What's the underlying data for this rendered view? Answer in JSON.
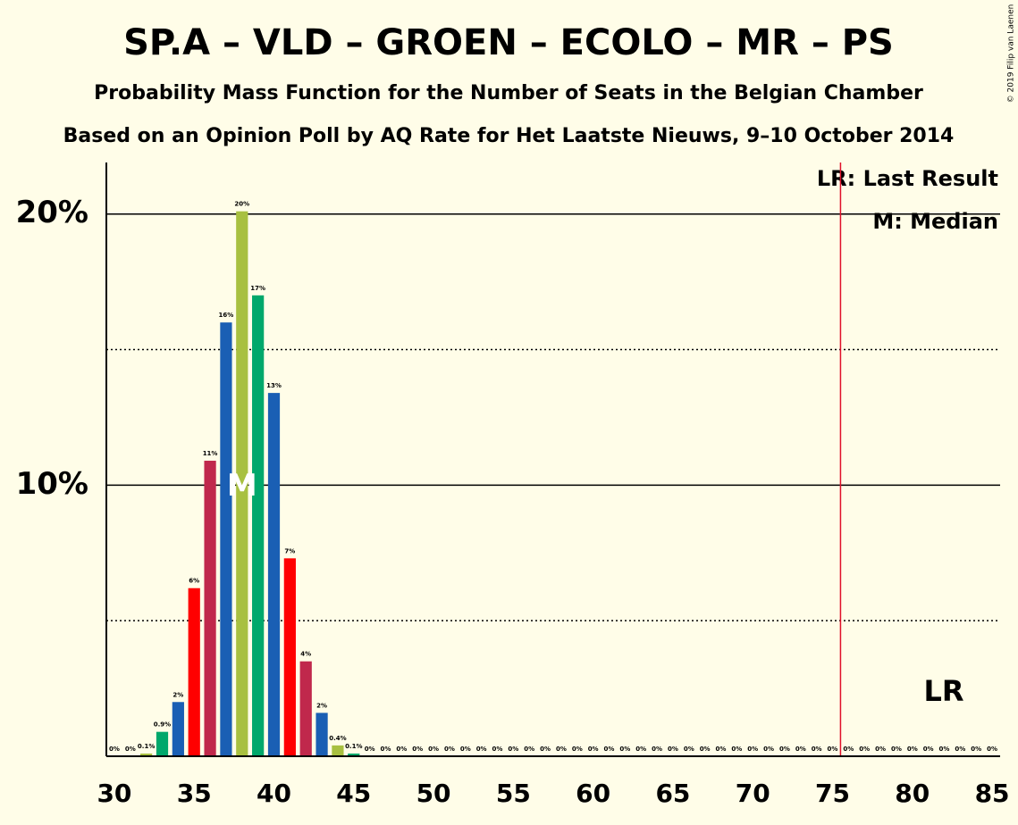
{
  "chart_data": {
    "type": "bar",
    "title": "SP.A – VLD – GROEN – ECOLO – MR – PS",
    "subtitle": "Probability Mass Function for the Number of Seats in the Belgian Chamber",
    "subtitle2": "Based on an Opinion Poll by AQ Rate for Het Laatste Nieuws, 9–10 October 2014",
    "copyright": "© 2019 Filip van Laenen",
    "x": [
      30,
      31,
      32,
      33,
      34,
      35,
      36,
      37,
      38,
      39,
      40,
      41,
      42,
      43,
      44,
      45,
      46,
      47,
      48,
      49,
      50,
      51,
      52,
      53,
      54,
      55,
      56,
      57,
      58,
      59,
      60,
      61,
      62,
      63,
      64,
      65,
      66,
      67,
      68,
      69,
      70,
      71,
      72,
      73,
      74,
      75,
      76,
      77,
      78,
      79,
      80,
      81,
      82,
      83,
      84,
      85
    ],
    "values": [
      0,
      0,
      0.1,
      0.9,
      2.0,
      6.2,
      10.9,
      16.0,
      20.1,
      17.0,
      13.4,
      7.3,
      3.5,
      1.6,
      0.4,
      0.1,
      0,
      0,
      0,
      0,
      0,
      0,
      0,
      0,
      0,
      0,
      0,
      0,
      0,
      0,
      0,
      0,
      0,
      0,
      0,
      0,
      0,
      0,
      0,
      0,
      0,
      0,
      0,
      0,
      0,
      0,
      0,
      0,
      0,
      0,
      0,
      0,
      0,
      0,
      0,
      0
    ],
    "value_labels": [
      "0%",
      "0%",
      "0.1%",
      "0.9%",
      "2%",
      "6%",
      "11%",
      "16%",
      "20%",
      "17%",
      "13%",
      "7%",
      "4%",
      "2%",
      "0.4%",
      "0.1%",
      "0%",
      "0%",
      "0%",
      "0%",
      "0%",
      "0%",
      "0%",
      "0%",
      "0%",
      "0%",
      "0%",
      "0%",
      "0%",
      "0%",
      "0%",
      "0%",
      "0%",
      "0%",
      "0%",
      "0%",
      "0%",
      "0%",
      "0%",
      "0%",
      "0%",
      "0%",
      "0%",
      "0%",
      "0%",
      "0%",
      "0%",
      "0%",
      "0%",
      "0%",
      "0%",
      "0%",
      "0%",
      "0%",
      "0%",
      "0%"
    ],
    "colors": [
      "#c0284c",
      "#1a5fb4",
      "#a8c040",
      "#00a86b",
      "#1a5fb4",
      "#ff0000",
      "#c0284c",
      "#1a5fb4",
      "#a8c040",
      "#00a86b",
      "#1a5fb4",
      "#ff0000",
      "#c0284c",
      "#1a5fb4",
      "#a8c040",
      "#00a86b",
      "#1a5fb4",
      "#ff0000",
      "#c0284c",
      "#1a5fb4",
      "#a8c040",
      "#00a86b",
      "#1a5fb4",
      "#ff0000",
      "#c0284c",
      "#1a5fb4",
      "#a8c040",
      "#00a86b",
      "#1a5fb4",
      "#ff0000",
      "#c0284c",
      "#1a5fb4",
      "#a8c040",
      "#00a86b",
      "#1a5fb4",
      "#ff0000",
      "#c0284c",
      "#1a5fb4",
      "#a8c040",
      "#00a86b",
      "#1a5fb4",
      "#ff0000",
      "#c0284c",
      "#1a5fb4",
      "#a8c040",
      "#00a86b",
      "#1a5fb4",
      "#ff0000",
      "#c0284c",
      "#1a5fb4",
      "#a8c040",
      "#00a86b",
      "#1a5fb4",
      "#ff0000",
      "#c0284c",
      "#1a5fb4"
    ],
    "xlim": [
      29.5,
      85.5
    ],
    "xticks": [
      30,
      35,
      40,
      45,
      50,
      55,
      60,
      65,
      70,
      75,
      80,
      85
    ],
    "ylim": [
      0,
      21.9
    ],
    "yticks": [
      {
        "value": 10,
        "label": "10%"
      },
      {
        "value": 20,
        "label": "20%"
      }
    ],
    "minor_grid": [
      5,
      15
    ],
    "median": 38,
    "median_marker": "M",
    "last_result": 76,
    "last_result_marker": "LR",
    "legend": [
      "LR: Last Result",
      "M: Median"
    ]
  }
}
